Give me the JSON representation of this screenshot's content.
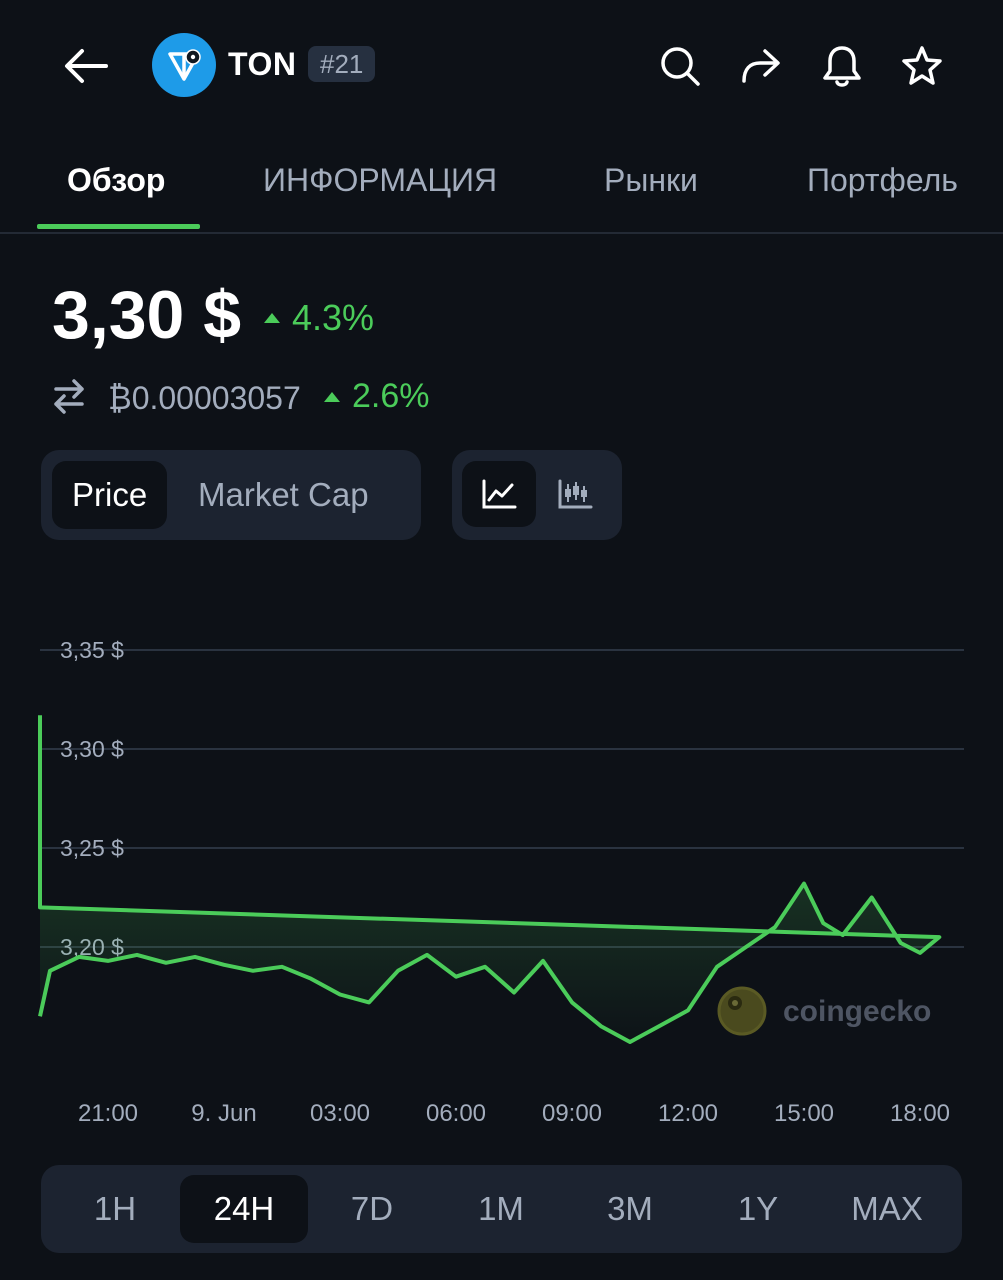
{
  "header": {
    "coin_name": "TON",
    "rank": "#21",
    "icons": [
      "back-arrow-icon",
      "ton-logo-icon",
      "search-icon",
      "share-icon",
      "bell-icon",
      "star-icon"
    ]
  },
  "tabs": [
    {
      "label": "Обзор",
      "active": true
    },
    {
      "label": "ИНФОРМАЦИЯ",
      "active": false
    },
    {
      "label": "Рынки",
      "active": false
    },
    {
      "label": "Портфель",
      "active": false
    }
  ],
  "price": {
    "usd": "3,30 $",
    "usd_change": "4.3%",
    "btc": "₿0.00003057",
    "btc_change": "2.6%"
  },
  "chart_toggle": {
    "metric_options": [
      "Price",
      "Market Cap"
    ],
    "selected_metric": "Price",
    "chart_styles": [
      "line-chart-icon",
      "candlestick-icon"
    ],
    "selected_style": "line-chart-icon"
  },
  "chart_data": {
    "type": "area",
    "watermark": "coingecko",
    "y_ticks": [
      "3,35 $",
      "3,30 $",
      "3,25 $",
      "3,20 $"
    ],
    "ylim": [
      3.14,
      3.35
    ],
    "x_ticks": [
      "21:00",
      "9. Jun",
      "03:00",
      "06:00",
      "09:00",
      "12:00",
      "15:00",
      "18:00"
    ],
    "x": [
      "18:42",
      "19:30",
      "20:15",
      "21:00",
      "21:45",
      "22:30",
      "23:15",
      "00:00",
      "00:45",
      "01:30",
      "02:15",
      "03:00",
      "03:45",
      "04:30",
      "05:15",
      "06:00",
      "06:45",
      "07:30",
      "08:15",
      "09:00",
      "09:45",
      "10:30",
      "11:15",
      "12:00",
      "12:45",
      "13:30",
      "14:15",
      "15:00",
      "15:30",
      "16:00",
      "16:45",
      "17:30",
      "18:00",
      "18:30",
      "18:50",
      "19:00",
      "19:02"
    ],
    "series": [
      {
        "values": [
          3.165,
          3.188,
          3.195,
          3.193,
          3.196,
          3.192,
          3.195,
          3.191,
          3.188,
          3.19,
          3.184,
          3.176,
          3.172,
          3.188,
          3.196,
          3.185,
          3.19,
          3.177,
          3.193,
          3.172,
          3.16,
          3.152,
          3.16,
          3.168,
          3.19,
          3.2,
          3.21,
          3.232,
          3.212,
          3.206,
          3.225,
          3.202,
          3.197,
          3.205,
          3.22,
          3.255,
          3.317
        ]
      }
    ],
    "colors": {
      "line": "#4bcc5a"
    }
  },
  "time_ranges": {
    "options": [
      "1H",
      "24H",
      "7D",
      "1M",
      "3M",
      "1Y",
      "MAX"
    ],
    "selected": "24H"
  }
}
